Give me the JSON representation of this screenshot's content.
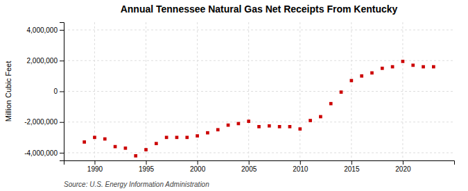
{
  "chart_data": {
    "type": "scatter",
    "title": "Annual Tennessee Natural Gas Net Receipts From Kentucky",
    "ylabel": "Million Cubic Feet",
    "source": "Source: U.S. Energy Information Administration",
    "color": "#cc0000",
    "marker": "square",
    "x": [
      1989,
      1990,
      1991,
      1992,
      1993,
      1994,
      1995,
      1996,
      1997,
      1998,
      1999,
      2000,
      2001,
      2002,
      2003,
      2004,
      2005,
      2006,
      2007,
      2008,
      2009,
      2010,
      2011,
      2012,
      2013,
      2014,
      2015,
      2016,
      2017,
      2018,
      2019,
      2020,
      2021,
      2022,
      2023
    ],
    "values": [
      -3300000,
      -3000000,
      -3100000,
      -3600000,
      -3700000,
      -4200000,
      -3800000,
      -3400000,
      -3000000,
      -3000000,
      -3000000,
      -2900000,
      -2700000,
      -2500000,
      -2200000,
      -2100000,
      -1950000,
      -2300000,
      -2250000,
      -2300000,
      -2300000,
      -2450000,
      -1900000,
      -1650000,
      -800000,
      -50000,
      700000,
      1000000,
      1200000,
      1500000,
      1600000,
      1950000,
      1700000,
      1600000,
      1600000
    ],
    "xlim": [
      1987,
      2025
    ],
    "xticks": [
      1990,
      1995,
      2000,
      2005,
      2010,
      2015,
      2020
    ],
    "ylim": [
      -4500000,
      4500000
    ],
    "yticks": [
      {
        "value": -4000000,
        "label": "-4,000,000"
      },
      {
        "value": -2000000,
        "label": "-2,000,000"
      },
      0,
      {
        "value": 2000000,
        "label": "2,000,000"
      },
      {
        "value": 4000000,
        "label": "4,000,000"
      }
    ],
    "grid": true
  }
}
